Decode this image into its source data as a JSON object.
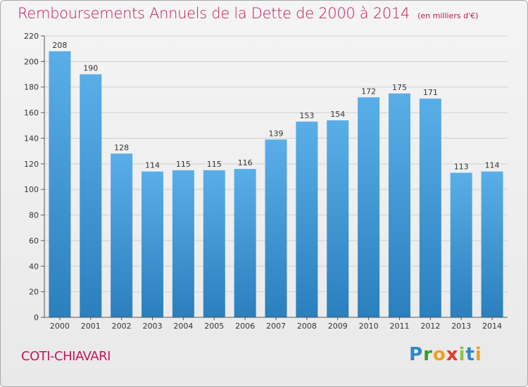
{
  "title": "Remboursements Annuels de la Dette de 2000 à 2014",
  "subtitle": "(en milliers d'€)",
  "commune": "COTI-CHIAVARI",
  "brand": {
    "letters": [
      "P",
      "r",
      "o",
      "x",
      "i",
      "t",
      "i"
    ],
    "colors": [
      "#2e86c8",
      "#3a9b2f",
      "#f0a020",
      "#e03a2b",
      "#8bc34a",
      "#2e86c8",
      "#f0a020"
    ]
  },
  "colors": {
    "bar_light": "#5aaee8",
    "bar_dark": "#2a7fbd",
    "grid": "#d0d0d0",
    "axis": "#555555",
    "title": "#c2175b"
  },
  "chart_data": {
    "type": "bar",
    "title": "Remboursements Annuels de la Dette de 2000 à 2014",
    "subtitle": "(en milliers d'€)",
    "xlabel": "",
    "ylabel": "",
    "categories": [
      "2000",
      "2001",
      "2002",
      "2003",
      "2004",
      "2005",
      "2006",
      "2007",
      "2008",
      "2009",
      "2010",
      "2011",
      "2012",
      "2013",
      "2014"
    ],
    "values": [
      208,
      190,
      128,
      114,
      115,
      115,
      116,
      139,
      153,
      154,
      172,
      175,
      171,
      113,
      114
    ],
    "ylim": [
      0,
      220
    ],
    "yticks": [
      0,
      20,
      40,
      60,
      80,
      100,
      120,
      140,
      160,
      180,
      200,
      220
    ],
    "grid": true,
    "legend": "none"
  }
}
